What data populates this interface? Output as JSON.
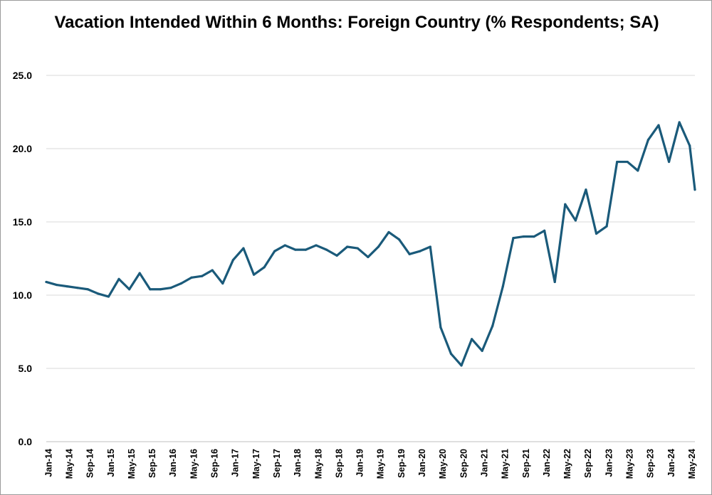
{
  "chart_data": {
    "type": "line",
    "title": "Vacation Intended Within 6 Months: Foreign Country (% Respondents; SA)",
    "xlabel": "",
    "ylabel": "",
    "ylim": [
      0,
      25
    ],
    "yticks": [
      "0.0",
      "5.0",
      "10.0",
      "15.0",
      "20.0",
      "25.0"
    ],
    "grid": true,
    "legend": "none",
    "line_color": "#1a5a7a",
    "x_tick_labels": [
      "Jan-14",
      "May-14",
      "Sep-14",
      "Jan-15",
      "May-15",
      "Sep-15",
      "Jan-16",
      "May-16",
      "Sep-16",
      "Jan-17",
      "May-17",
      "Sep-17",
      "Jan-18",
      "May-18",
      "Sep-18",
      "Jan-19",
      "May-19",
      "Sep-19",
      "Jan-20",
      "May-20",
      "Sep-20",
      "Jan-21",
      "May-21",
      "Sep-21",
      "Jan-22",
      "May-22",
      "Sep-22",
      "Jan-23",
      "May-23",
      "Sep-23",
      "Jan-24",
      "May-24"
    ],
    "x": [
      "Jan-14",
      "Mar-14",
      "May-14",
      "Jul-14",
      "Sep-14",
      "Nov-14",
      "Jan-15",
      "Mar-15",
      "May-15",
      "Jul-15",
      "Sep-15",
      "Nov-15",
      "Jan-16",
      "Mar-16",
      "May-16",
      "Jul-16",
      "Sep-16",
      "Nov-16",
      "Jan-17",
      "Mar-17",
      "May-17",
      "Jul-17",
      "Sep-17",
      "Nov-17",
      "Jan-18",
      "Mar-18",
      "May-18",
      "Jul-18",
      "Sep-18",
      "Nov-18",
      "Jan-19",
      "Mar-19",
      "May-19",
      "Jul-19",
      "Sep-19",
      "Nov-19",
      "Jan-20",
      "Mar-20",
      "May-20",
      "Jul-20",
      "Sep-20",
      "Nov-20",
      "Jan-21",
      "Mar-21",
      "May-21",
      "Jul-21",
      "Sep-21",
      "Nov-21",
      "Jan-22",
      "Mar-22",
      "May-22",
      "Jul-22",
      "Sep-22",
      "Nov-22",
      "Jan-23",
      "Mar-23",
      "May-23",
      "Jul-23",
      "Sep-23",
      "Nov-23",
      "Jan-24",
      "Mar-24",
      "May-24",
      "Jun-24"
    ],
    "series": [
      {
        "values": [
          10.9,
          10.7,
          10.6,
          10.5,
          10.4,
          10.1,
          9.9,
          11.1,
          10.4,
          11.5,
          10.4,
          10.4,
          10.5,
          10.8,
          11.2,
          11.3,
          11.7,
          10.8,
          12.4,
          13.2,
          11.4,
          11.9,
          13.0,
          13.4,
          13.1,
          13.1,
          13.4,
          13.1,
          12.7,
          13.3,
          13.2,
          12.6,
          13.3,
          14.3,
          13.8,
          12.8,
          13.0,
          13.3,
          7.8,
          6.0,
          5.2,
          7.0,
          6.2,
          7.9,
          10.6,
          13.9,
          14.0,
          14.0,
          14.4,
          10.9,
          16.2,
          15.1,
          17.2,
          14.2,
          14.7,
          19.1,
          19.1,
          18.5,
          20.6,
          21.6,
          19.1,
          21.8,
          20.2,
          17.2
        ]
      }
    ]
  }
}
